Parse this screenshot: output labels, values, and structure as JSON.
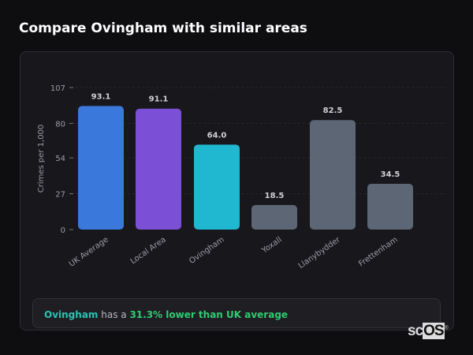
{
  "title": "Compare Ovingham with similar areas",
  "chart_data": {
    "type": "bar",
    "ylabel": "Crimes per 1,000",
    "xlabel": "",
    "ylim": [
      0,
      107
    ],
    "yticks": [
      0,
      27,
      54,
      80,
      107
    ],
    "grid": true,
    "categories": [
      "UK Average",
      "Local Area",
      "Ovingham",
      "Yoxall",
      "Llanybydder",
      "Frettenham"
    ],
    "values": [
      93.1,
      91.1,
      64.0,
      18.5,
      82.5,
      34.5
    ],
    "value_labels": [
      "93.1",
      "91.1",
      "64.0",
      "18.5",
      "82.5",
      "34.5"
    ],
    "colors": [
      "#3a78dc",
      "#7b4fd6",
      "#1fb8d0",
      "#5d6675",
      "#5d6675",
      "#5d6675"
    ]
  },
  "note": {
    "place": "Ovingham",
    "middle": " has a ",
    "comparison": "31.3% lower than UK average"
  },
  "logo": {
    "text": "scOS",
    "prefix": "sc",
    "suffix": "OS",
    "mark": "®"
  }
}
